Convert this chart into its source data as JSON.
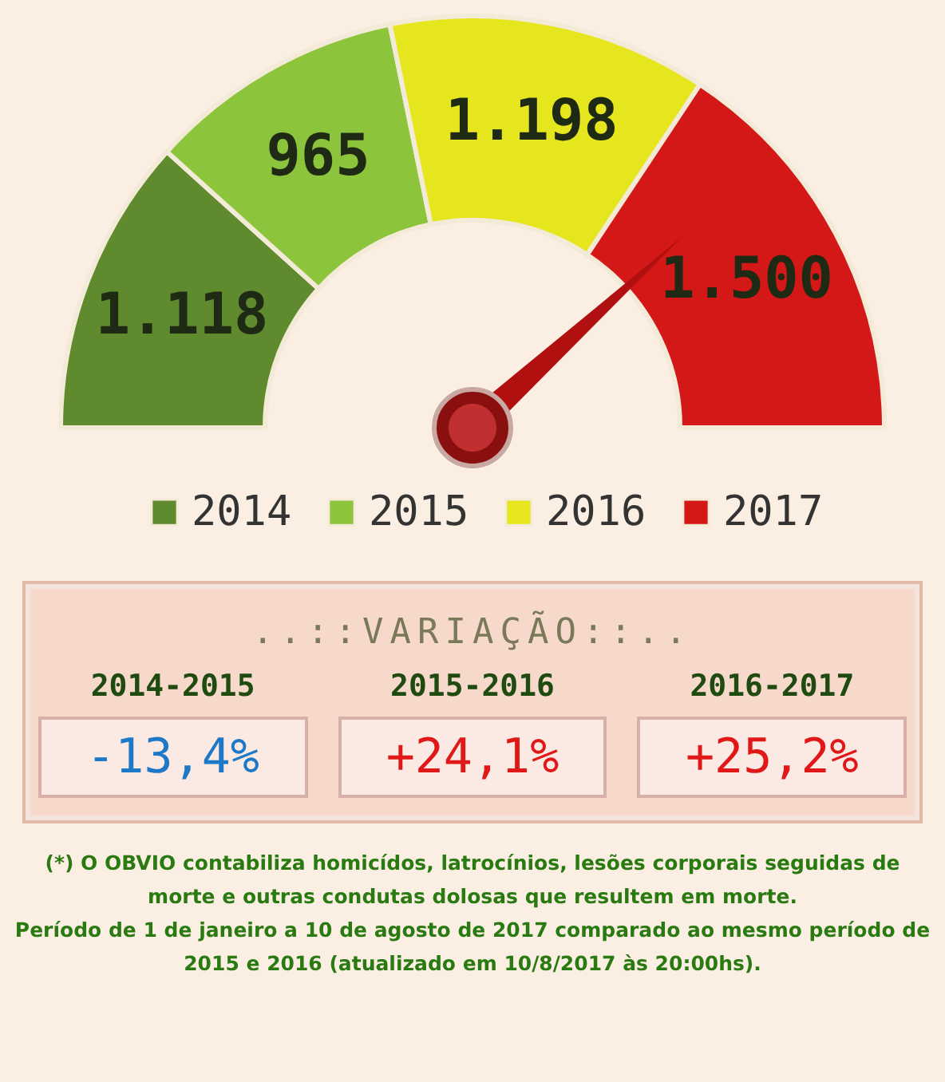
{
  "chart_data": [
    {
      "type": "donut",
      "categories": [
        "2014",
        "2015",
        "2016",
        "2017"
      ],
      "values": [
        1118,
        965,
        1198,
        1500
      ],
      "value_labels": [
        "1.118",
        "965",
        "1.198",
        "1.500"
      ],
      "colors": [
        "#5f8a2e",
        "#8cc43c",
        "#e6e61e",
        "#d41818"
      ],
      "legend": "bottom",
      "needle": "2017"
    },
    {
      "type": "other",
      "title": "..::VARIAÇÃO::..",
      "categories": [
        "2014-2015",
        "2015-2016",
        "2016-2017"
      ],
      "values": [
        -13.4,
        24.1,
        25.2
      ],
      "value_labels": [
        "-13,4%",
        "+24,1%",
        "+25,2%"
      ],
      "annotations": [
        "(*) O OBVIO contabiliza homicídos, latrocínios, lesões corporais seguidas de morte e outras condutas dolosas que resultem em morte.",
        "Período de 1 de janeiro a 10 de agosto de 2017 comparado ao mesmo período de 2015 e 2016 (atualizado em 10/8/2017 às 20:00hs)."
      ]
    }
  ]
}
